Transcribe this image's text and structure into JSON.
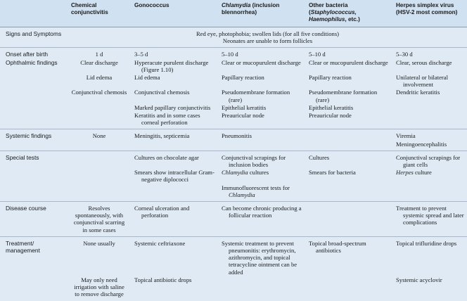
{
  "table": {
    "header": [
      null,
      "Chemical conjunctivitis",
      "Gonococcus",
      [
        {
          "t": "Chlamydia",
          "i": true
        },
        {
          "t": " (inclusion blennorrhea)"
        }
      ],
      [
        {
          "t": "Other bacteria ("
        },
        {
          "t": "Staphylococcus, Haemophilus",
          "i": true
        },
        {
          "t": ", etc.)"
        }
      ],
      "Herpes simplex virus (HSV-2 most common)"
    ],
    "groups": [
      {
        "rows": [
          {
            "label": "Signs and Symptoms",
            "span": [
              "Red eye, photophobia; swollen lids (for all five conditions)",
              "Neonates are unable to form follicles"
            ]
          }
        ]
      },
      {
        "rows": [
          {
            "label": "Onset after birth",
            "cells": [
              "1 d",
              "3–5 d",
              "5–10 d",
              "5–10 d",
              "5–30 d"
            ]
          },
          {
            "label": "Ophthalmic findings",
            "cells": [
              "Clear discharge",
              "Hyperacute purulent discharge (Figure 1.10)",
              "Clear or mucopurulent discharge",
              "Clear or mucopurulent discharge",
              "Clear, serous discharge"
            ]
          },
          {
            "cells": [
              "Lid edema",
              "Lid edema",
              "Papillary reaction",
              "Papillary reaction",
              "Unilateral or bilateral involvement"
            ]
          },
          {
            "cells": [
              "Conjunctival chemosis",
              "Conjunctival chemosis",
              "Pseudomembrane formation (rare)",
              "Pseudomembrane formation (rare)",
              "Dendritic keratitis"
            ]
          },
          {
            "cells": [
              null,
              "Marked papillary conjunctivitis",
              "Epithelial keratitis",
              "Epithelial keratitis",
              null
            ]
          },
          {
            "cells": [
              null,
              "Keratitis and in some cases corneal perforation",
              "Preauricular node",
              "Preauricular node",
              null
            ]
          }
        ]
      },
      {
        "rows": [
          {
            "label": "Systemic findings",
            "cells": [
              "None",
              "Meningitis, septicemia",
              "Pneumonitis",
              null,
              "Viremia"
            ]
          },
          {
            "cells": [
              null,
              null,
              null,
              null,
              "Meningoencephalitis"
            ]
          }
        ]
      },
      {
        "rows": [
          {
            "label": "Special tests",
            "cells": [
              null,
              "Cultures on chocolate agar",
              "Conjunctival scrapings for inclusion bodies",
              "Cultures",
              "Conjunctival scrapings for giant cells"
            ]
          },
          {
            "cells": [
              null,
              "Smears show intracellular Gram-negative diplococci",
              [
                {
                  "t": "Chlamydia",
                  "i": true
                },
                {
                  "t": " cultures"
                }
              ],
              "Smears for bacteria",
              [
                {
                  "t": "Herpes",
                  "i": true
                },
                {
                  "t": " culture"
                }
              ]
            ]
          },
          {
            "cells": [
              null,
              null,
              [
                {
                  "t": "Immunofluorescent tests for "
                },
                {
                  "t": "Chlamydia",
                  "i": true
                }
              ],
              null,
              null
            ]
          }
        ]
      },
      {
        "rows": [
          {
            "label": "Disease course",
            "cells": [
              "Resolves spontaneously, with conjunctival scarring in some cases",
              "Corneal ulceration and perforation",
              "Can become chronic producing a follicular reaction",
              null,
              "Treatment to prevent systemic spread and later complications"
            ]
          }
        ]
      },
      {
        "rows": [
          {
            "label": "Treatment/ management",
            "cells": [
              "None usually",
              "Systemic ceftriaxone",
              "Systemic treatment to prevent pneumonitis: erythromycin, azithromycin, and topical tetracycline ointment can be added",
              "Topical broad-spectrum antibiotics",
              "Topical trifluridine drops"
            ]
          },
          {
            "cells": [
              "May only need irrigation with saline to remove discharge",
              "Topical antibiotic drops",
              null,
              null,
              "Systemic acyclovir"
            ]
          }
        ]
      }
    ]
  }
}
